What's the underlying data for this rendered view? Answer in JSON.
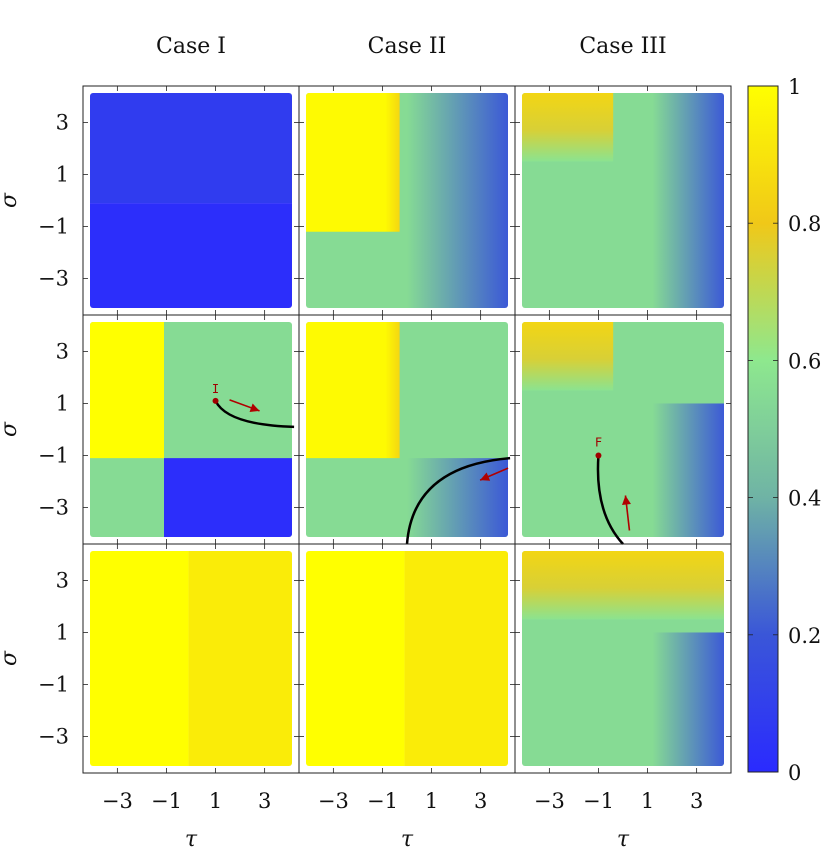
{
  "chart_data": {
    "type": "heatmap",
    "layout": "3x3 grid of panels",
    "column_titles": [
      "Case I",
      "Case II",
      "Case III"
    ],
    "xlabel": "τ",
    "ylabel": "σ",
    "x_ticks": [
      -3,
      -1,
      1,
      3
    ],
    "y_ticks": [
      3,
      1,
      -1,
      -3
    ],
    "x_tick_labels": [
      "−3",
      "−1",
      "1",
      "3"
    ],
    "y_tick_labels": [
      "3",
      "1",
      "−1",
      "−3"
    ],
    "xlim": [
      -4.4,
      4.4
    ],
    "ylim": [
      -4.4,
      4.4
    ],
    "colorbar": {
      "min": 0,
      "max": 1,
      "ticks": [
        0,
        0.2,
        0.4,
        0.6,
        0.8,
        1
      ],
      "tick_labels": [
        "0",
        "0.2",
        "0.4",
        "0.6",
        "0.8",
        "1"
      ],
      "colormap": [
        "#2a2aff",
        "#3a56d8",
        "#6fb3a5",
        "#8ee88e",
        "#f0c818",
        "#ffff00"
      ]
    },
    "panels": [
      {
        "row": 0,
        "col": 0,
        "regions": [
          {
            "tau": [
              -4.2,
              4.2
            ],
            "sigma": [
              -0.1,
              4.2
            ],
            "value": 0.08
          },
          {
            "tau": [
              -4.2,
              4.2
            ],
            "sigma": [
              -4.2,
              -0.1
            ],
            "value": 0.02
          }
        ]
      },
      {
        "row": 0,
        "col": 1,
        "regions": [
          {
            "tau": [
              -4.2,
              4.2
            ],
            "sigma": [
              -4.2,
              4.2
            ],
            "value": 0.55,
            "fade_right": {
              "from_tau": 0.0,
              "to_value": 0.2
            }
          },
          {
            "tau": [
              -4.2,
              -0.3
            ],
            "sigma": [
              -1.2,
              4.2
            ],
            "value": 0.98,
            "edge_value": 0.85
          }
        ]
      },
      {
        "row": 0,
        "col": 2,
        "regions": [
          {
            "tau": [
              -4.2,
              4.2
            ],
            "sigma": [
              -4.2,
              4.2
            ],
            "value": 0.55,
            "fade_right": {
              "from_tau": 1.2,
              "to_value": 0.2
            }
          },
          {
            "tau": [
              -4.2,
              -0.4
            ],
            "sigma": [
              1.5,
              4.2
            ],
            "value": 0.85,
            "fade_down": true
          }
        ]
      },
      {
        "row": 1,
        "col": 0,
        "regions": [
          {
            "tau": [
              -4.2,
              4.2
            ],
            "sigma": [
              -4.2,
              4.2
            ],
            "value": 0.55
          },
          {
            "tau": [
              -4.2,
              -1.1
            ],
            "sigma": [
              -1.1,
              4.2
            ],
            "value": 1.0
          },
          {
            "tau": [
              -1.1,
              4.2
            ],
            "sigma": [
              -4.2,
              -1.1
            ],
            "value": 0.02
          }
        ],
        "trajectory": {
          "label": "I",
          "start": [
            1,
            1.1
          ],
          "end": [
            4.2,
            0.1
          ]
        }
      },
      {
        "row": 1,
        "col": 1,
        "regions": [
          {
            "tau": [
              -4.2,
              4.2
            ],
            "sigma": [
              -4.2,
              4.2
            ],
            "value": 0.55
          },
          {
            "tau": [
              -4.2,
              -0.3
            ],
            "sigma": [
              -1.1,
              4.2
            ],
            "value": 0.98,
            "edge_value": 0.85
          },
          {
            "tau": [
              0.0,
              4.2
            ],
            "sigma": [
              -4.2,
              -1.1
            ],
            "value": 0.55,
            "fade_right": {
              "from_tau": 0.0,
              "to_value": 0.2
            }
          }
        ],
        "trajectory": {
          "start": [
            4.2,
            -1.1
          ],
          "end": [
            0.0,
            -4.4
          ]
        }
      },
      {
        "row": 1,
        "col": 2,
        "regions": [
          {
            "tau": [
              -4.2,
              4.2
            ],
            "sigma": [
              -4.2,
              4.2
            ],
            "value": 0.55
          },
          {
            "tau": [
              -4.2,
              -0.4
            ],
            "sigma": [
              1.5,
              4.2
            ],
            "value": 0.85,
            "fade_down": true
          },
          {
            "tau": [
              1.0,
              4.2
            ],
            "sigma": [
              -4.2,
              1.0
            ],
            "value": 0.55,
            "fade_right": {
              "from_tau": 1.2,
              "to_value": 0.2
            }
          }
        ],
        "trajectory": {
          "label": "F",
          "start": [
            0.0,
            -4.4
          ],
          "end": [
            -1,
            -1.0
          ]
        }
      },
      {
        "row": 2,
        "col": 0,
        "regions": [
          {
            "tau": [
              -4.2,
              -0.1
            ],
            "sigma": [
              -4.2,
              4.2
            ],
            "value": 1.0
          },
          {
            "tau": [
              -0.1,
              4.2
            ],
            "sigma": [
              -4.2,
              4.2
            ],
            "value": 0.93
          }
        ]
      },
      {
        "row": 2,
        "col": 1,
        "regions": [
          {
            "tau": [
              -4.2,
              -0.1
            ],
            "sigma": [
              -4.2,
              4.2
            ],
            "value": 1.0
          },
          {
            "tau": [
              -0.1,
              4.2
            ],
            "sigma": [
              -4.2,
              4.2
            ],
            "value": 0.93
          }
        ]
      },
      {
        "row": 2,
        "col": 2,
        "regions": [
          {
            "tau": [
              -4.2,
              4.2
            ],
            "sigma": [
              -4.2,
              4.2
            ],
            "value": 0.55
          },
          {
            "tau": [
              -4.2,
              4.2
            ],
            "sigma": [
              1.5,
              4.2
            ],
            "value": 0.85,
            "fade_down": true
          },
          {
            "tau": [
              1.2,
              4.2
            ],
            "sigma": [
              -4.2,
              1.0
            ],
            "value": 0.55,
            "fade_right": {
              "from_tau": 1.2,
              "to_value": 0.2
            }
          }
        ]
      }
    ]
  }
}
